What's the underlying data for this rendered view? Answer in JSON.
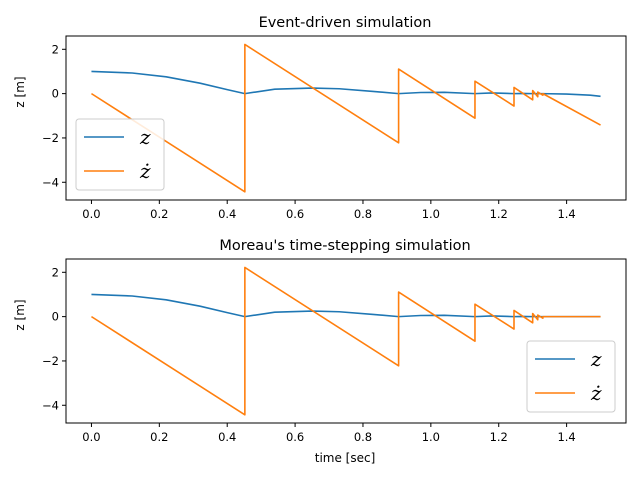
{
  "chart_data": [
    {
      "type": "line",
      "title": "Event-driven simulation",
      "xlabel": "",
      "ylabel": "z [m]",
      "xlim": [
        -0.075,
        1.575
      ],
      "ylim": [
        -4.8,
        2.6
      ],
      "xticks": [
        0.0,
        0.2,
        0.4,
        0.6,
        0.8,
        1.0,
        1.2,
        1.4
      ],
      "xtick_labels": [
        "0.0",
        "0.2",
        "0.4",
        "0.6",
        "0.8",
        "1.0",
        "1.2",
        "1.4"
      ],
      "yticks": [
        -4,
        -2,
        0,
        2
      ],
      "ytick_labels": [
        "−4",
        "−2",
        "0",
        "2"
      ],
      "legend_position": "lower-left",
      "series": [
        {
          "name": "z",
          "legend": "z",
          "color": "#1f77b4",
          "x": [
            0.0,
            0.12,
            0.22,
            0.32,
            0.4,
            0.452,
            0.54,
            0.65,
            0.73,
            0.83,
            0.905,
            0.97,
            1.04,
            1.13,
            1.18,
            1.245,
            1.27,
            1.3,
            1.315,
            1.33,
            1.4,
            1.47,
            1.5
          ],
          "y": [
            1.0,
            0.93,
            0.76,
            0.47,
            0.18,
            0.0,
            0.2,
            0.25,
            0.22,
            0.1,
            0.0,
            0.05,
            0.06,
            0.0,
            0.03,
            0.0,
            0.01,
            0.0,
            0.0,
            0.0,
            -0.02,
            -0.07,
            -0.12
          ]
        },
        {
          "name": "z dot",
          "legend": "ż",
          "color": "#ff7f0e",
          "x": [
            0.0,
            0.452,
            0.452,
            0.905,
            0.905,
            1.13,
            1.13,
            1.245,
            1.245,
            1.3,
            1.3,
            1.315,
            1.315,
            1.33,
            1.33,
            1.5
          ],
          "y": [
            0.0,
            -4.43,
            2.22,
            -2.22,
            1.11,
            -1.11,
            0.56,
            -0.56,
            0.28,
            -0.28,
            0.14,
            -0.14,
            0.07,
            -0.07,
            0.0,
            -1.42
          ]
        }
      ]
    },
    {
      "type": "line",
      "title": "Moreau's time-stepping simulation",
      "xlabel": "time [sec]",
      "ylabel": "z [m]",
      "xlim": [
        -0.075,
        1.575
      ],
      "ylim": [
        -4.8,
        2.6
      ],
      "xticks": [
        0.0,
        0.2,
        0.4,
        0.6,
        0.8,
        1.0,
        1.2,
        1.4
      ],
      "xtick_labels": [
        "0.0",
        "0.2",
        "0.4",
        "0.6",
        "0.8",
        "1.0",
        "1.2",
        "1.4"
      ],
      "yticks": [
        -4,
        -2,
        0,
        2
      ],
      "ytick_labels": [
        "−4",
        "−2",
        "0",
        "2"
      ],
      "legend_position": "lower-right",
      "series": [
        {
          "name": "z",
          "legend": "z",
          "color": "#1f77b4",
          "x": [
            0.0,
            0.12,
            0.22,
            0.32,
            0.4,
            0.452,
            0.54,
            0.65,
            0.73,
            0.83,
            0.905,
            0.97,
            1.04,
            1.13,
            1.18,
            1.245,
            1.27,
            1.3,
            1.315,
            1.33,
            1.5
          ],
          "y": [
            1.0,
            0.93,
            0.76,
            0.47,
            0.18,
            0.0,
            0.2,
            0.25,
            0.22,
            0.1,
            0.0,
            0.05,
            0.06,
            0.0,
            0.03,
            0.0,
            0.01,
            0.0,
            0.0,
            0.0,
            0.0
          ]
        },
        {
          "name": "z dot",
          "legend": "ż",
          "color": "#ff7f0e",
          "x": [
            0.0,
            0.452,
            0.452,
            0.905,
            0.905,
            1.13,
            1.13,
            1.245,
            1.245,
            1.3,
            1.3,
            1.315,
            1.315,
            1.33,
            1.33,
            1.5
          ],
          "y": [
            0.0,
            -4.43,
            2.22,
            -2.22,
            1.11,
            -1.11,
            0.56,
            -0.56,
            0.28,
            -0.28,
            0.14,
            -0.14,
            0.07,
            -0.07,
            0.0,
            0.0
          ]
        }
      ]
    }
  ]
}
